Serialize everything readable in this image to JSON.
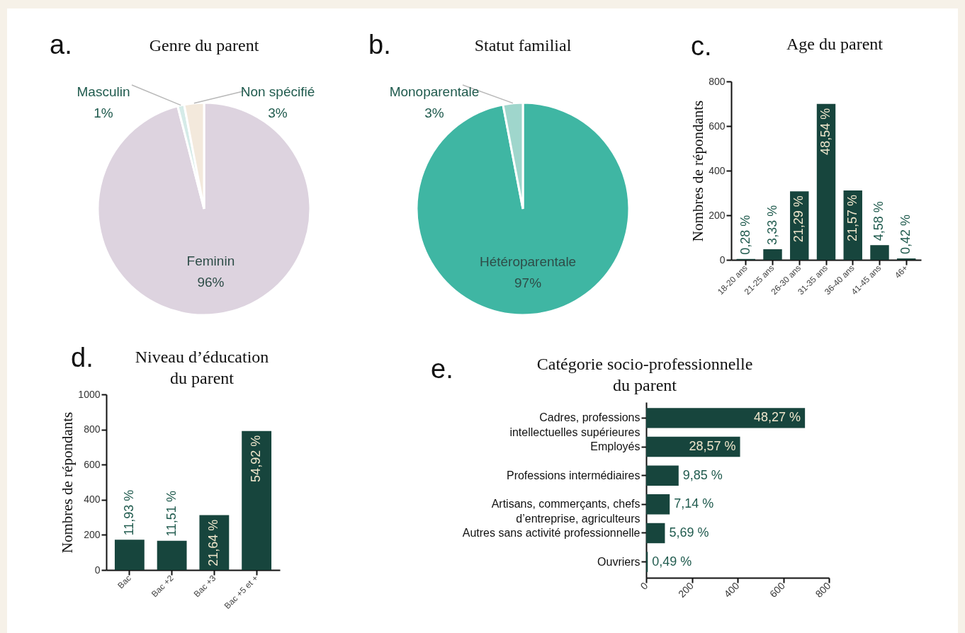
{
  "chart_data": [
    {
      "type": "pie",
      "title": "Genre du parent",
      "annotations": [
        "a."
      ],
      "categories": [
        "Feminin",
        "Masculin",
        "Non spécifié"
      ],
      "values": [
        96,
        1,
        3
      ],
      "value_labels": [
        "96%",
        "1%",
        "3%"
      ],
      "colors": [
        "#ddd3df",
        "#d5ebe8",
        "#f3e9dc"
      ]
    },
    {
      "type": "pie",
      "title": "Statut familial",
      "annotations": [
        "b."
      ],
      "categories": [
        "Hétéroparentale",
        "Monoparentale"
      ],
      "values": [
        97,
        3
      ],
      "value_labels": [
        "97%",
        "3%"
      ],
      "colors": [
        "#3fb6a3",
        "#9fd6cc"
      ]
    },
    {
      "type": "bar",
      "title": "Age du parent",
      "ylabel": "Nombres de répondants",
      "categories": [
        "18-20 ans",
        "21-25 ans",
        "26-30 ans",
        "31-35 ans",
        "36-40 ans",
        "41-45 ans",
        "46+"
      ],
      "values": [
        4,
        48,
        307,
        699,
        311,
        66,
        6
      ],
      "color": "#17453d",
      "ylim": [
        0,
        800
      ],
      "yticks": [
        0,
        200,
        400,
        600,
        800
      ],
      "annotations": [
        "c.",
        {
          "text": "0,28 %",
          "x": "18-20 ans",
          "y": 4
        },
        {
          "text": "3,33 %",
          "x": "21-25 ans",
          "y": 48
        },
        {
          "text": "21,29 %",
          "x": "26-30 ans",
          "y": 307
        },
        {
          "text": "48,54 %",
          "x": "31-35 ans",
          "y": 699
        },
        {
          "text": "21,57 %",
          "x": "36-40 ans",
          "y": 311
        },
        {
          "text": "4,58 %",
          "x": "41-45 ans",
          "y": 66
        },
        {
          "text": "0,42 %",
          "x": "46+",
          "y": 6
        }
      ]
    },
    {
      "type": "bar",
      "title": "Niveau d’éducation\ndu parent",
      "ylabel": "Nombres de répondants",
      "categories": [
        "Bac",
        "Bac +2",
        "Bac +3",
        "Bac +5 et +"
      ],
      "values": [
        172,
        166,
        312,
        791
      ],
      "color": "#17453d",
      "ylim": [
        0,
        1000
      ],
      "yticks": [
        0,
        200,
        400,
        600,
        800,
        1000
      ],
      "annotations": [
        "d.",
        {
          "text": "11,93 %",
          "x": "Bac",
          "y": 172
        },
        {
          "text": "11,51 %",
          "x": "Bac +2",
          "y": 166
        },
        {
          "text": "21,64 %",
          "x": "Bac +3",
          "y": 312
        },
        {
          "text": "54,92 %",
          "x": "Bac +5 et +",
          "y": 791
        }
      ]
    },
    {
      "type": "bar",
      "orientation": "horizontal",
      "title": "Catégorie socio-professionnelle\ndu parent",
      "categories": [
        "Cadres, professions\nintellectuelles supérieures",
        "Employés",
        "Professions intermédiaires",
        "Artisans, commerçants, chefs\nd’entreprise, agriculteurs",
        "Autres sans activité professionnelle",
        "Ouvriers"
      ],
      "values": [
        695,
        411,
        142,
        103,
        82,
        7
      ],
      "color": "#17453d",
      "xlim": [
        0,
        800
      ],
      "xticks": [
        0,
        200,
        400,
        600,
        800
      ],
      "annotations": [
        "e.",
        {
          "text": "48,27 %",
          "x": 695,
          "y": "Cadres, professions\nintellectuelles supérieures"
        },
        {
          "text": "28,57 %",
          "x": 411,
          "y": "Employés"
        },
        {
          "text": "9,85 %",
          "x": 142,
          "y": "Professions intermédiaires"
        },
        {
          "text": "7,14 %",
          "x": 103,
          "y": "Artisans, commerçants, chefs\nd’entreprise, agriculteurs"
        },
        {
          "text": "5,69 %",
          "x": 82,
          "y": "Autres sans activité professionnelle"
        },
        {
          "text": "0,49 %",
          "x": 7,
          "y": "Ouvriers"
        }
      ]
    }
  ]
}
